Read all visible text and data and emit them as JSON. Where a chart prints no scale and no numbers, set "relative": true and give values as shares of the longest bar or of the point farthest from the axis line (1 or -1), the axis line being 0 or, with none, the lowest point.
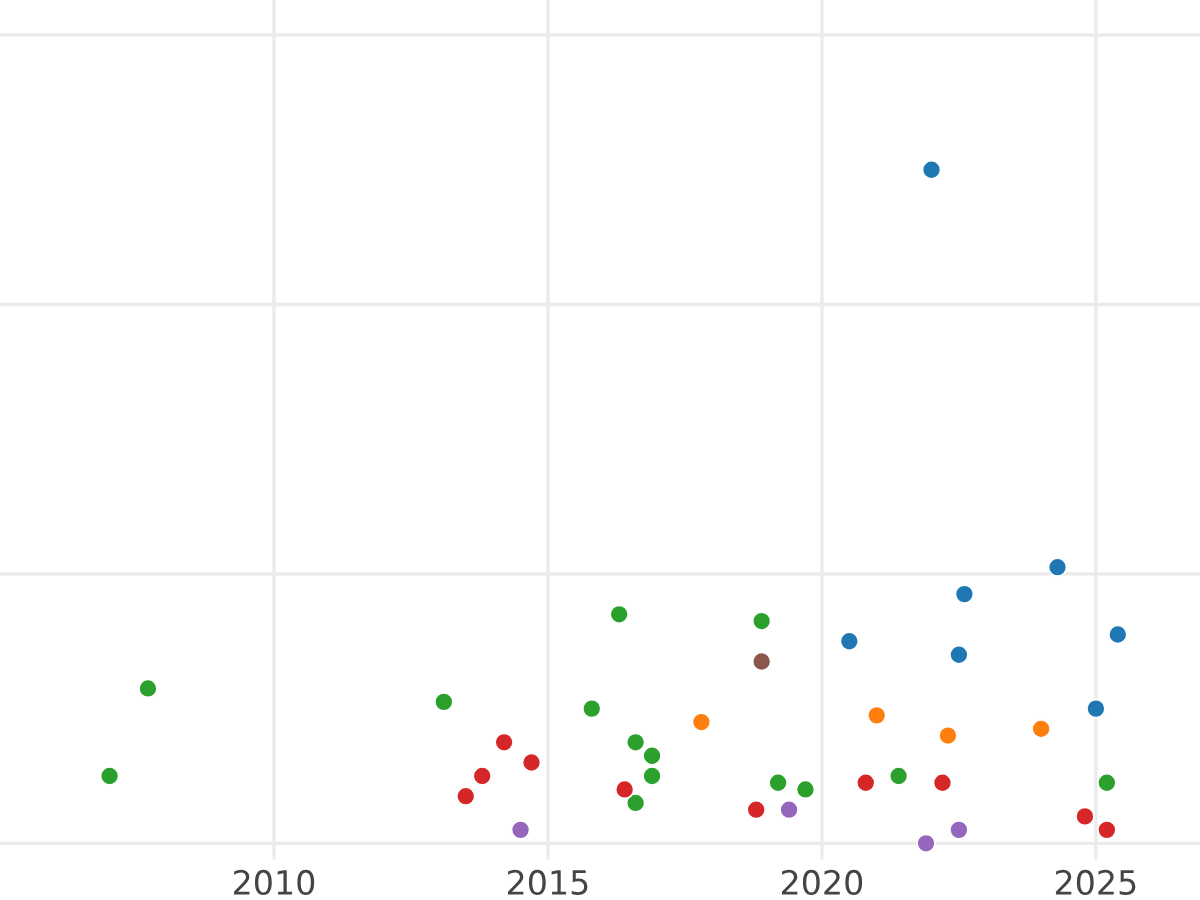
{
  "chart_data": {
    "type": "scatter",
    "relative": true,
    "xlim": [
      2005.0,
      2026.9
    ],
    "xticks": [
      2010,
      2015,
      2020,
      2025
    ],
    "tick_labels": "x",
    "grid": true,
    "legend": false,
    "marker": "circle",
    "series": [
      {
        "color": "#2ca02c",
        "x": [
          2007.0,
          2007.7,
          2013.1,
          2015.8,
          2016.3,
          2016.6,
          2016.9,
          2016.9,
          2016.6,
          2018.9,
          2019.2,
          2019.7,
          2021.4,
          2025.2
        ],
        "values": [
          0.1,
          0.23,
          0.21,
          0.2,
          0.34,
          0.15,
          0.13,
          0.1,
          0.06,
          0.33,
          0.09,
          0.08,
          0.1,
          0.09
        ]
      },
      {
        "color": "#d62728",
        "x": [
          2013.5,
          2013.8,
          2014.2,
          2014.7,
          2016.4,
          2018.8,
          2020.8,
          2022.2,
          2024.8,
          2025.2
        ],
        "values": [
          0.07,
          0.1,
          0.15,
          0.12,
          0.08,
          0.05,
          0.09,
          0.09,
          0.04,
          0.02
        ]
      },
      {
        "color": "#9467bd",
        "x": [
          2014.5,
          2019.4,
          2021.9,
          2022.5
        ],
        "values": [
          0.02,
          0.05,
          0.0,
          0.02
        ]
      },
      {
        "color": "#ff7f0e",
        "x": [
          2017.8,
          2021.0,
          2022.3,
          2024.0
        ],
        "values": [
          0.18,
          0.19,
          0.16,
          0.17
        ]
      },
      {
        "color": "#8c564b",
        "x": [
          2018.9
        ],
        "values": [
          0.27
        ]
      },
      {
        "color": "#1f77b4",
        "x": [
          2022.0,
          2022.6,
          2024.3,
          2020.5,
          2022.5,
          2025.4,
          2025.0
        ],
        "values": [
          1.0,
          0.37,
          0.41,
          0.3,
          0.28,
          0.31,
          0.2
        ]
      }
    ]
  }
}
